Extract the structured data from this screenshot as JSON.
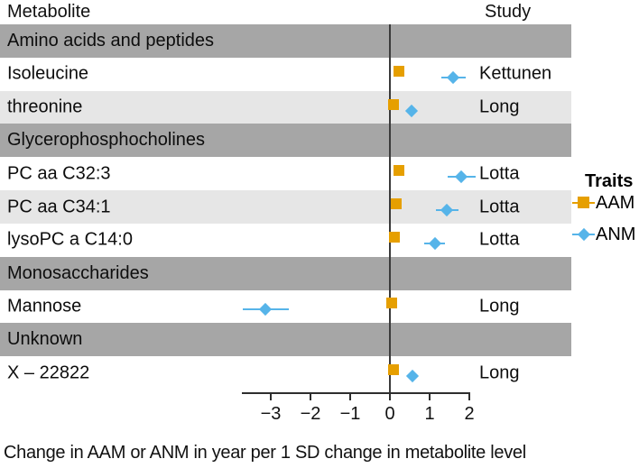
{
  "header": {
    "metabolite_label": "Metabolite",
    "study_label": "Study"
  },
  "caption": "Change in AAM or ANM in year per 1 SD change in metabolite level",
  "legend": {
    "title": "Traits",
    "items": [
      {
        "label": "AAM",
        "marker": "square",
        "color": "#E69F00"
      },
      {
        "label": "ANM",
        "marker": "diamond",
        "color": "#56B4E9"
      }
    ]
  },
  "colors": {
    "aam": "#E69F00",
    "anm": "#56B4E9",
    "section_band": "#A6A6A6",
    "row_stripe": "#E6E6E6",
    "zero_line": "#3b3b3b",
    "axis": "#2e2e2e"
  },
  "chart_data": {
    "type": "scatter",
    "subtype": "forest-plot",
    "title": "",
    "xlabel": "Change in AAM or ANM in year per 1 SD change in metabolite level",
    "ylabel": "",
    "xlim": [
      -3.7,
      2.0
    ],
    "x_ticks": [
      -3,
      -2,
      -1,
      0,
      1,
      2
    ],
    "x_tick_labels": [
      "−3",
      "−2",
      "−1",
      "0",
      "1",
      "2"
    ],
    "grid": false,
    "legend_position": "right",
    "reference_line_x": 0,
    "series_names": [
      "AAM",
      "ANM"
    ],
    "sections": [
      {
        "header": "Amino acids and peptides",
        "rows": [
          {
            "metabolite": "Isoleucine",
            "study": "Kettunen",
            "aam": {
              "est": 0.23
            },
            "anm": {
              "est": 1.6,
              "ci_low": 1.3,
              "ci_high": 1.9
            }
          },
          {
            "metabolite": "threonine",
            "study": "Long",
            "aam": {
              "est": 0.1
            },
            "anm": {
              "est": 0.55
            }
          }
        ]
      },
      {
        "header": "Glycerophosphocholines",
        "rows": [
          {
            "metabolite": "PC aa C32:3",
            "study": "Lotta",
            "aam": {
              "est": 0.23
            },
            "anm": {
              "est": 1.8,
              "ci_low": 1.45,
              "ci_high": 2.15
            }
          },
          {
            "metabolite": "PC aa C34:1",
            "study": "Lotta",
            "aam": {
              "est": 0.16
            },
            "anm": {
              "est": 1.43,
              "ci_low": 1.16,
              "ci_high": 1.72
            }
          },
          {
            "metabolite": "lysoPC a C14:0",
            "study": "Lotta",
            "aam": {
              "est": 0.11
            },
            "anm": {
              "est": 1.13,
              "ci_low": 0.87,
              "ci_high": 1.39
            }
          }
        ]
      },
      {
        "header": "Monosaccharides",
        "rows": [
          {
            "metabolite": "Mannose",
            "study": "Long",
            "aam": {
              "est": 0.05
            },
            "anm": {
              "est": -3.14,
              "ci_low": -3.7,
              "ci_high": -2.55
            }
          }
        ]
      },
      {
        "header": "Unknown",
        "rows": [
          {
            "metabolite": "X – 22822",
            "study": "Long",
            "aam": {
              "est": 0.09
            },
            "anm": {
              "est": 0.57
            }
          }
        ]
      }
    ]
  }
}
